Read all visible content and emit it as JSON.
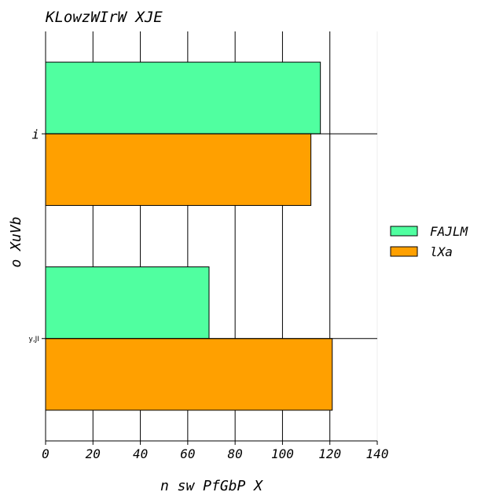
{
  "chart_data": {
    "type": "bar",
    "orientation": "horizontal",
    "title": "KLowzWIrW XJE",
    "xlabel": "n sw PfGbP X",
    "ylabel": "o XuVb",
    "categories": [
      "i",
      "y,JI"
    ],
    "series": [
      {
        "name": "FAJLM",
        "color": "#50ffa0",
        "values": [
          116,
          69
        ]
      },
      {
        "name": "lXa",
        "color": "#ffa000",
        "values": [
          112,
          121
        ]
      }
    ],
    "xlim": [
      0,
      140
    ],
    "xticks": [
      "0",
      "20",
      "40",
      "60",
      "80",
      "100",
      "120",
      "140"
    ],
    "grid": true,
    "legend": "right"
  }
}
